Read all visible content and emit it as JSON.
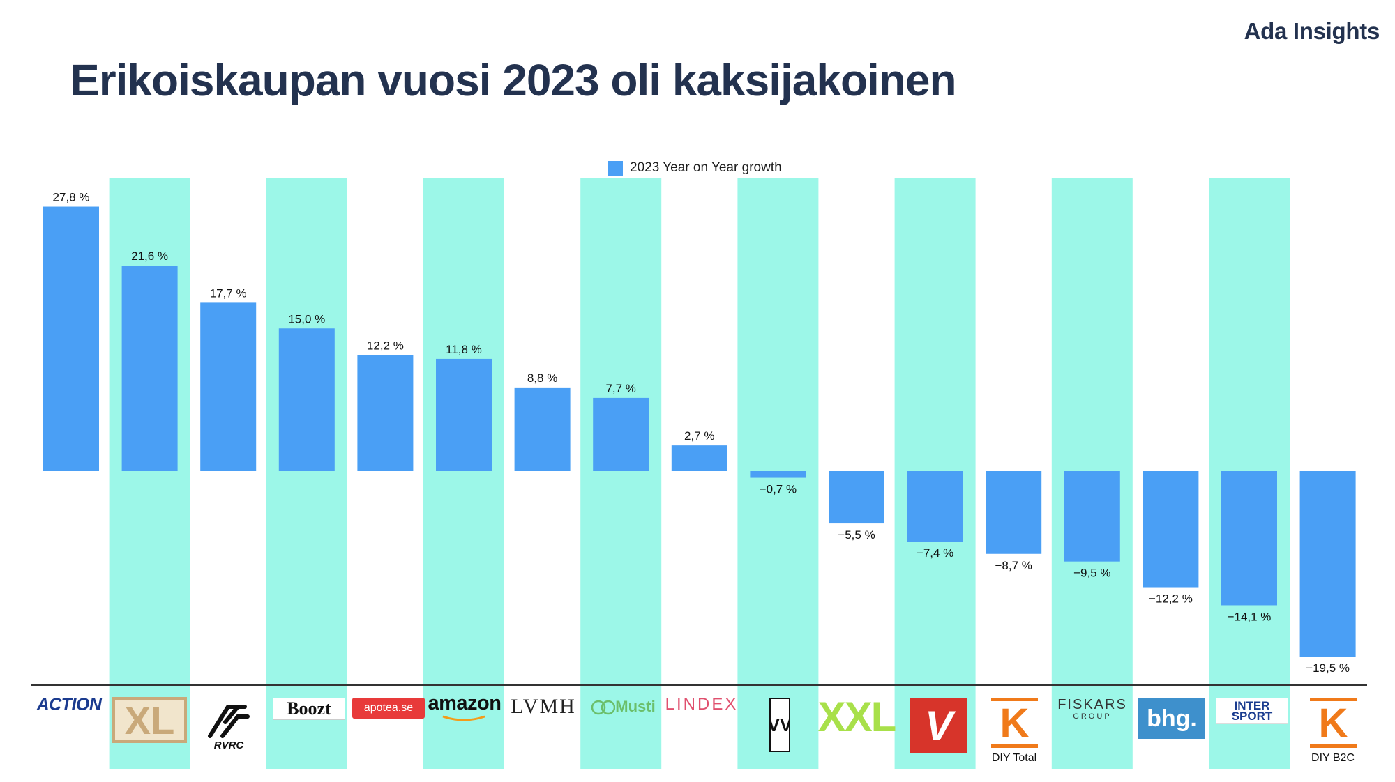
{
  "brand": "Ada Insights",
  "title": "Erikoiskaupan vuosi 2023 oli kaksijakoinen",
  "colors": {
    "bar": "#4a9ff5",
    "stripe": "#9cf7e8",
    "title": "#23324f",
    "axis": "#333333"
  },
  "chart_data": {
    "type": "bar",
    "title": "Erikoiskaupan vuosi 2023 oli kaksijakoinen",
    "xlabel": "",
    "ylabel": "",
    "legend": {
      "label": "2023 Year on Year growth",
      "position": "top-center"
    },
    "ylim": [
      -22,
      30
    ],
    "grid": false,
    "categories": [
      "Action",
      "XL BYGG",
      "RVRC",
      "Boozt.com",
      "apotea.se",
      "amazon",
      "LVMH",
      "Musti Group",
      "Lindex",
      "VV",
      "XXL",
      "Verkkokauppa.com",
      "K DIY Total",
      "Fiskars Group",
      "bhg.",
      "Intersport",
      "K DIY B2C"
    ],
    "values": [
      27.8,
      21.6,
      17.7,
      15.0,
      12.2,
      11.8,
      8.8,
      7.7,
      2.7,
      -0.7,
      -5.5,
      -7.4,
      -8.7,
      -9.5,
      -12.2,
      -14.1,
      -19.5
    ],
    "value_labels": [
      "27,8 %",
      "21,6 %",
      "17,7 %",
      "15,0 %",
      "12,2 %",
      "11,8 %",
      "8,8 %",
      "7,7 %",
      "2,7 %",
      "−0,7 %",
      "−5,5 %",
      "−7,4 %",
      "−8,7 %",
      "−9,5 %",
      "−12,2 %",
      "−14,1 %",
      "−19,5 %"
    ]
  },
  "logos": {
    "action": "ACTION",
    "xl": "XL",
    "rvrc": "RVRC",
    "boozt": "Boozt",
    "apotea": "apotea.se",
    "amazon": "amazon",
    "lvmh": "LVMH",
    "musti": "Musti",
    "lindex": "LINDEX",
    "vv": "VV",
    "xxl": "XXL",
    "verkkokauppa": "V",
    "k1": "K",
    "fiskars": "FISKARS",
    "fiskars_sub": "GROUP",
    "bhg": "bhg.",
    "intersport": "INTER SPORT",
    "k2": "K"
  },
  "sublabels": {
    "k1": "DIY Total",
    "k2": "DIY B2C"
  }
}
